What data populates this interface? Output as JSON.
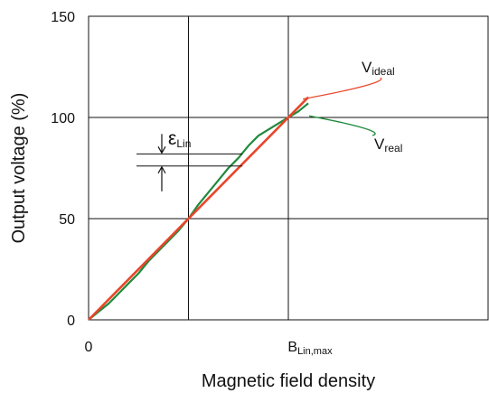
{
  "chart_data": {
    "type": "line",
    "title": "",
    "xlabel": "Magnetic field density",
    "ylabel": "Output voltage (%)",
    "ylim": [
      0,
      150
    ],
    "xlim": [
      0,
      2.0
    ],
    "x_tick_labels": [
      {
        "value": 0,
        "main": "0",
        "sub": ""
      },
      {
        "value": 1.0,
        "main": "B",
        "sub": "Lin,max"
      }
    ],
    "y_ticks": [
      0,
      50,
      100,
      150
    ],
    "x_grid": [
      0.5,
      1.0
    ],
    "grid": true,
    "series": [
      {
        "key": "ideal",
        "label_main": "V",
        "label_sub": "ideal",
        "color": "#e8462a",
        "x": [
          0,
          1.1
        ],
        "y": [
          0,
          110
        ]
      },
      {
        "key": "real",
        "label_main": "V",
        "label_sub": "real",
        "color": "#1f8a3c",
        "x": [
          0,
          0.05,
          0.1,
          0.15,
          0.2,
          0.25,
          0.3,
          0.35,
          0.4,
          0.45,
          0.5,
          0.55,
          0.6,
          0.65,
          0.7,
          0.75,
          0.8,
          0.85,
          0.9,
          0.95,
          1.0,
          1.05,
          1.1
        ],
        "y": [
          0,
          4,
          8,
          13,
          18,
          23,
          29,
          34,
          39,
          44,
          50,
          57,
          63,
          69,
          75,
          80,
          86,
          91,
          94,
          97,
          100,
          103,
          107
        ]
      }
    ],
    "annotations": {
      "epsilon": {
        "main": "ε",
        "sub": "Lin",
        "y_top": 82,
        "y_bottom": 76,
        "x_left": 0.24,
        "x_right": 0.77
      }
    }
  }
}
